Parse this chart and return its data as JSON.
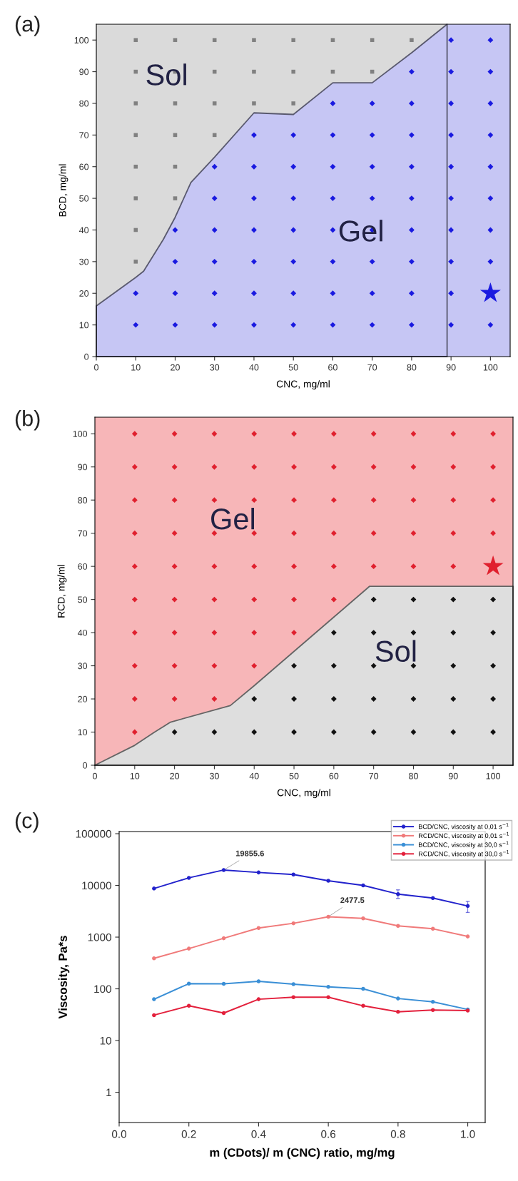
{
  "chart_data": [
    {
      "type": "scatter",
      "title": "(a)",
      "xlabel": "CNC, mg/ml",
      "ylabel": "BCD, mg/ml",
      "bands": [
        {
          "axis": "y",
          "from": 0,
          "to": 105,
          "color": "#dadada"
        },
        {
          "axis": "x",
          "from": 89,
          "to": 105,
          "color": "#c6c6f4"
        }
      ],
      "xlim": [
        0,
        105
      ],
      "ylim": [
        0,
        105
      ],
      "xticks": [
        0,
        10,
        20,
        30,
        40,
        50,
        60,
        70,
        80,
        90,
        100
      ],
      "yticks": [
        0,
        10,
        20,
        30,
        40,
        50,
        60,
        70,
        80,
        90,
        100
      ],
      "grid": false,
      "legend": false,
      "annotations": [
        "Sol",
        "Gel"
      ],
      "series": [
        {
          "type": "area",
          "color": "#c6c6f4",
          "x": [
            0,
            10,
            12,
            17,
            20,
            24,
            30,
            40,
            50,
            60,
            70,
            80,
            89
          ],
          "values": [
            16,
            25,
            27,
            37,
            44,
            55,
            63,
            77,
            76.5,
            86.5,
            86.5,
            96,
            105
          ]
        },
        {
          "type": "scatter",
          "marker": "square",
          "color": "#808080",
          "x": [
            10,
            10,
            10,
            10,
            10,
            10,
            10,
            10,
            20,
            20,
            20,
            20,
            20,
            20,
            30,
            30,
            30,
            30,
            40,
            40,
            40,
            50,
            50,
            50,
            60,
            60,
            70,
            70,
            80
          ],
          "values": [
            30,
            40,
            50,
            60,
            70,
            80,
            90,
            100,
            50,
            60,
            70,
            80,
            90,
            100,
            70,
            80,
            90,
            100,
            80,
            90,
            100,
            80,
            90,
            100,
            90,
            100,
            90,
            100,
            100
          ]
        },
        {
          "type": "scatter",
          "marker": "diamond",
          "color": "#1a1ae0",
          "x": [
            10,
            10,
            20,
            20,
            20,
            20,
            30,
            30,
            30,
            30,
            30,
            30,
            40,
            40,
            40,
            40,
            40,
            40,
            40,
            50,
            50,
            50,
            50,
            50,
            50,
            50,
            60,
            60,
            60,
            60,
            60,
            60,
            60,
            60,
            70,
            70,
            70,
            70,
            70,
            70,
            70,
            70,
            80,
            80,
            80,
            80,
            80,
            80,
            80,
            80,
            80,
            90,
            90,
            90,
            90,
            90,
            90,
            90,
            90,
            90,
            90,
            100,
            100,
            100,
            100,
            100,
            100,
            100,
            100,
            100
          ],
          "values": [
            10,
            20,
            10,
            20,
            30,
            40,
            10,
            20,
            30,
            40,
            50,
            60,
            10,
            20,
            30,
            40,
            50,
            60,
            70,
            10,
            20,
            30,
            40,
            50,
            60,
            70,
            10,
            20,
            30,
            40,
            50,
            60,
            70,
            80,
            10,
            20,
            30,
            40,
            50,
            60,
            70,
            80,
            10,
            20,
            30,
            40,
            50,
            60,
            70,
            80,
            90,
            10,
            20,
            30,
            40,
            50,
            60,
            70,
            80,
            90,
            100,
            10,
            30,
            40,
            50,
            60,
            70,
            80,
            90,
            100
          ]
        },
        {
          "type": "scatter",
          "marker": "star",
          "color": "#1a1ae0",
          "x": [
            100
          ],
          "values": [
            20
          ]
        }
      ]
    },
    {
      "type": "scatter",
      "title": "(b)",
      "xlabel": "CNC, mg/ml",
      "ylabel": "RCD, mg/ml",
      "bands": [
        {
          "axis": "y",
          "from": 0,
          "to": 105,
          "color": "#f7b6b8"
        }
      ],
      "xlim": [
        0,
        105
      ],
      "ylim": [
        0,
        105
      ],
      "xticks": [
        0,
        10,
        20,
        30,
        40,
        50,
        60,
        70,
        80,
        90,
        100
      ],
      "yticks": [
        0,
        10,
        20,
        30,
        40,
        50,
        60,
        70,
        80,
        90,
        100
      ],
      "grid": false,
      "legend": false,
      "annotations": [
        "Gel",
        "Sol"
      ],
      "series": [
        {
          "type": "area",
          "color": "#dedede",
          "x": [
            0,
            10,
            15,
            19,
            34,
            40,
            69,
            105
          ],
          "values": [
            0,
            6,
            10,
            13,
            18,
            24,
            54,
            54
          ]
        },
        {
          "type": "scatter",
          "marker": "diamond",
          "color": "#e0202e",
          "x": [
            10,
            10,
            10,
            10,
            10,
            10,
            10,
            10,
            10,
            10,
            20,
            20,
            20,
            20,
            20,
            20,
            20,
            20,
            20,
            30,
            30,
            30,
            30,
            30,
            30,
            30,
            30,
            30,
            40,
            40,
            40,
            40,
            40,
            40,
            40,
            40,
            50,
            50,
            50,
            50,
            50,
            50,
            50,
            60,
            60,
            60,
            60,
            60,
            60,
            70,
            70,
            70,
            70,
            70,
            80,
            80,
            80,
            80,
            80,
            90,
            90,
            90,
            90,
            90,
            100,
            100,
            100,
            100
          ],
          "values": [
            10,
            20,
            30,
            40,
            50,
            60,
            70,
            80,
            90,
            100,
            20,
            30,
            40,
            50,
            60,
            70,
            80,
            90,
            100,
            20,
            30,
            40,
            50,
            60,
            70,
            80,
            90,
            100,
            30,
            40,
            50,
            60,
            70,
            80,
            90,
            100,
            40,
            50,
            60,
            70,
            80,
            90,
            100,
            50,
            60,
            70,
            80,
            90,
            100,
            60,
            70,
            80,
            90,
            100,
            60,
            70,
            80,
            90,
            100,
            60,
            70,
            80,
            90,
            100,
            70,
            80,
            90,
            100
          ]
        },
        {
          "type": "scatter",
          "marker": "diamond",
          "color": "#111111",
          "x": [
            20,
            30,
            40,
            40,
            50,
            50,
            50,
            60,
            60,
            60,
            60,
            70,
            70,
            70,
            70,
            70,
            80,
            80,
            80,
            80,
            80,
            90,
            90,
            90,
            90,
            90,
            100,
            100,
            100,
            100,
            100
          ],
          "values": [
            10,
            10,
            10,
            20,
            10,
            20,
            30,
            10,
            20,
            30,
            40,
            10,
            20,
            30,
            40,
            50,
            10,
            20,
            30,
            40,
            50,
            10,
            20,
            30,
            40,
            50,
            10,
            20,
            30,
            40,
            50
          ]
        },
        {
          "type": "scatter",
          "marker": "star",
          "color": "#e0202e",
          "x": [
            100
          ],
          "values": [
            60
          ]
        }
      ]
    },
    {
      "type": "line",
      "title": "(c)",
      "xlabel": "m (CDots)/ m (CNC) ratio, mg/mg",
      "ylabel": "Viscosity, Pa*s",
      "log": "y",
      "xlim": [
        0,
        1.05
      ],
      "ylim": [
        0.26,
        110000
      ],
      "xticks": [
        {
          "value": 0,
          "label": "0.0"
        },
        0.2,
        0.4,
        0.6,
        0.8,
        {
          "value": 1,
          "label": "1.0"
        }
      ],
      "yticks": [
        1,
        10,
        100,
        1000,
        10000,
        100000
      ],
      "grid": false,
      "legend": "top right",
      "marker": "circle",
      "x": [
        0.1,
        0.2,
        0.3,
        0.4,
        0.5,
        0.6,
        0.7,
        0.8,
        0.9,
        1.0
      ],
      "annotations": [
        {
          "text": "19855.6",
          "x": 0.3,
          "y": 19855.6
        },
        {
          "text": "2477.5",
          "x": 0.6,
          "y": 2477.5
        }
      ],
      "series": [
        {
          "name": "BCD/CNC, viscosity at 0,01 s$^{−1}$",
          "color": "#2222cc",
          "values": [
            8700,
            14000,
            19855.6,
            17800,
            16200,
            12300,
            10000,
            6800,
            5700,
            4000
          ],
          "errors": [
            null,
            null,
            null,
            null,
            null,
            null,
            null,
            [
              5600,
              8200
            ],
            null,
            [
              3000,
              4900
            ]
          ]
        },
        {
          "name": "RCD/CNC, viscosity at 0,01 s$^{−1}$",
          "color": "#f07a7a",
          "values": [
            390,
            600,
            950,
            1500,
            1850,
            2477.5,
            2300,
            1650,
            1450,
            1030
          ]
        },
        {
          "name": "BCD/CNC, viscosity at 30,0 s$^{−1}$",
          "color": "#3a8fd6",
          "values": [
            63,
            126,
            125,
            140,
            123,
            109,
            100,
            65,
            56,
            40
          ]
        },
        {
          "name": "RCD/CNC, viscosity at 30,0 s$^{−1}$",
          "color": "#e3203c",
          "values": [
            31,
            47,
            34,
            63,
            69,
            69,
            47,
            36,
            39,
            38
          ]
        }
      ]
    }
  ]
}
